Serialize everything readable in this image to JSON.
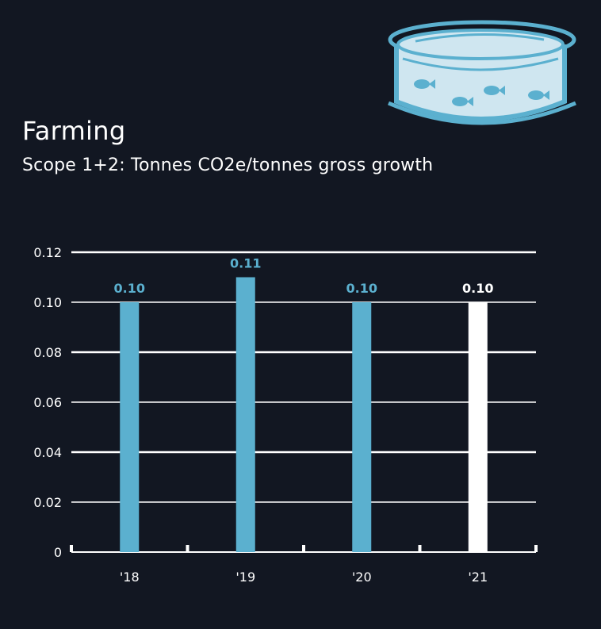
{
  "header": {
    "title": "Farming",
    "subtitle": "Scope 1+2: Tonnes CO2e/tonnes gross growth"
  },
  "colors": {
    "background": "#121722",
    "bar": "#5bb0cf",
    "highlight": "#ffffff",
    "grid": "#ffffff"
  },
  "icon": {
    "name": "fish-tank-icon"
  },
  "chart_data": {
    "type": "bar",
    "title": "Farming",
    "subtitle": "Scope 1+2: Tonnes CO2e/tonnes gross growth",
    "categories": [
      "'18",
      "'19",
      "'20",
      "'21"
    ],
    "values": [
      0.1,
      0.11,
      0.1,
      0.1
    ],
    "data_labels": [
      "0.10",
      "0.11",
      "0.10",
      "0.10"
    ],
    "highlight_index": 3,
    "ylim": [
      0,
      0.12
    ],
    "yticks": [
      0,
      0.02,
      0.04,
      0.06,
      0.08,
      0.1,
      0.12
    ],
    "ytick_labels": [
      "0",
      "0.02",
      "0.04",
      "0.06",
      "0.08",
      "0.10",
      "0.12"
    ],
    "grid": true,
    "legend": "none",
    "xlabel": "",
    "ylabel": ""
  }
}
